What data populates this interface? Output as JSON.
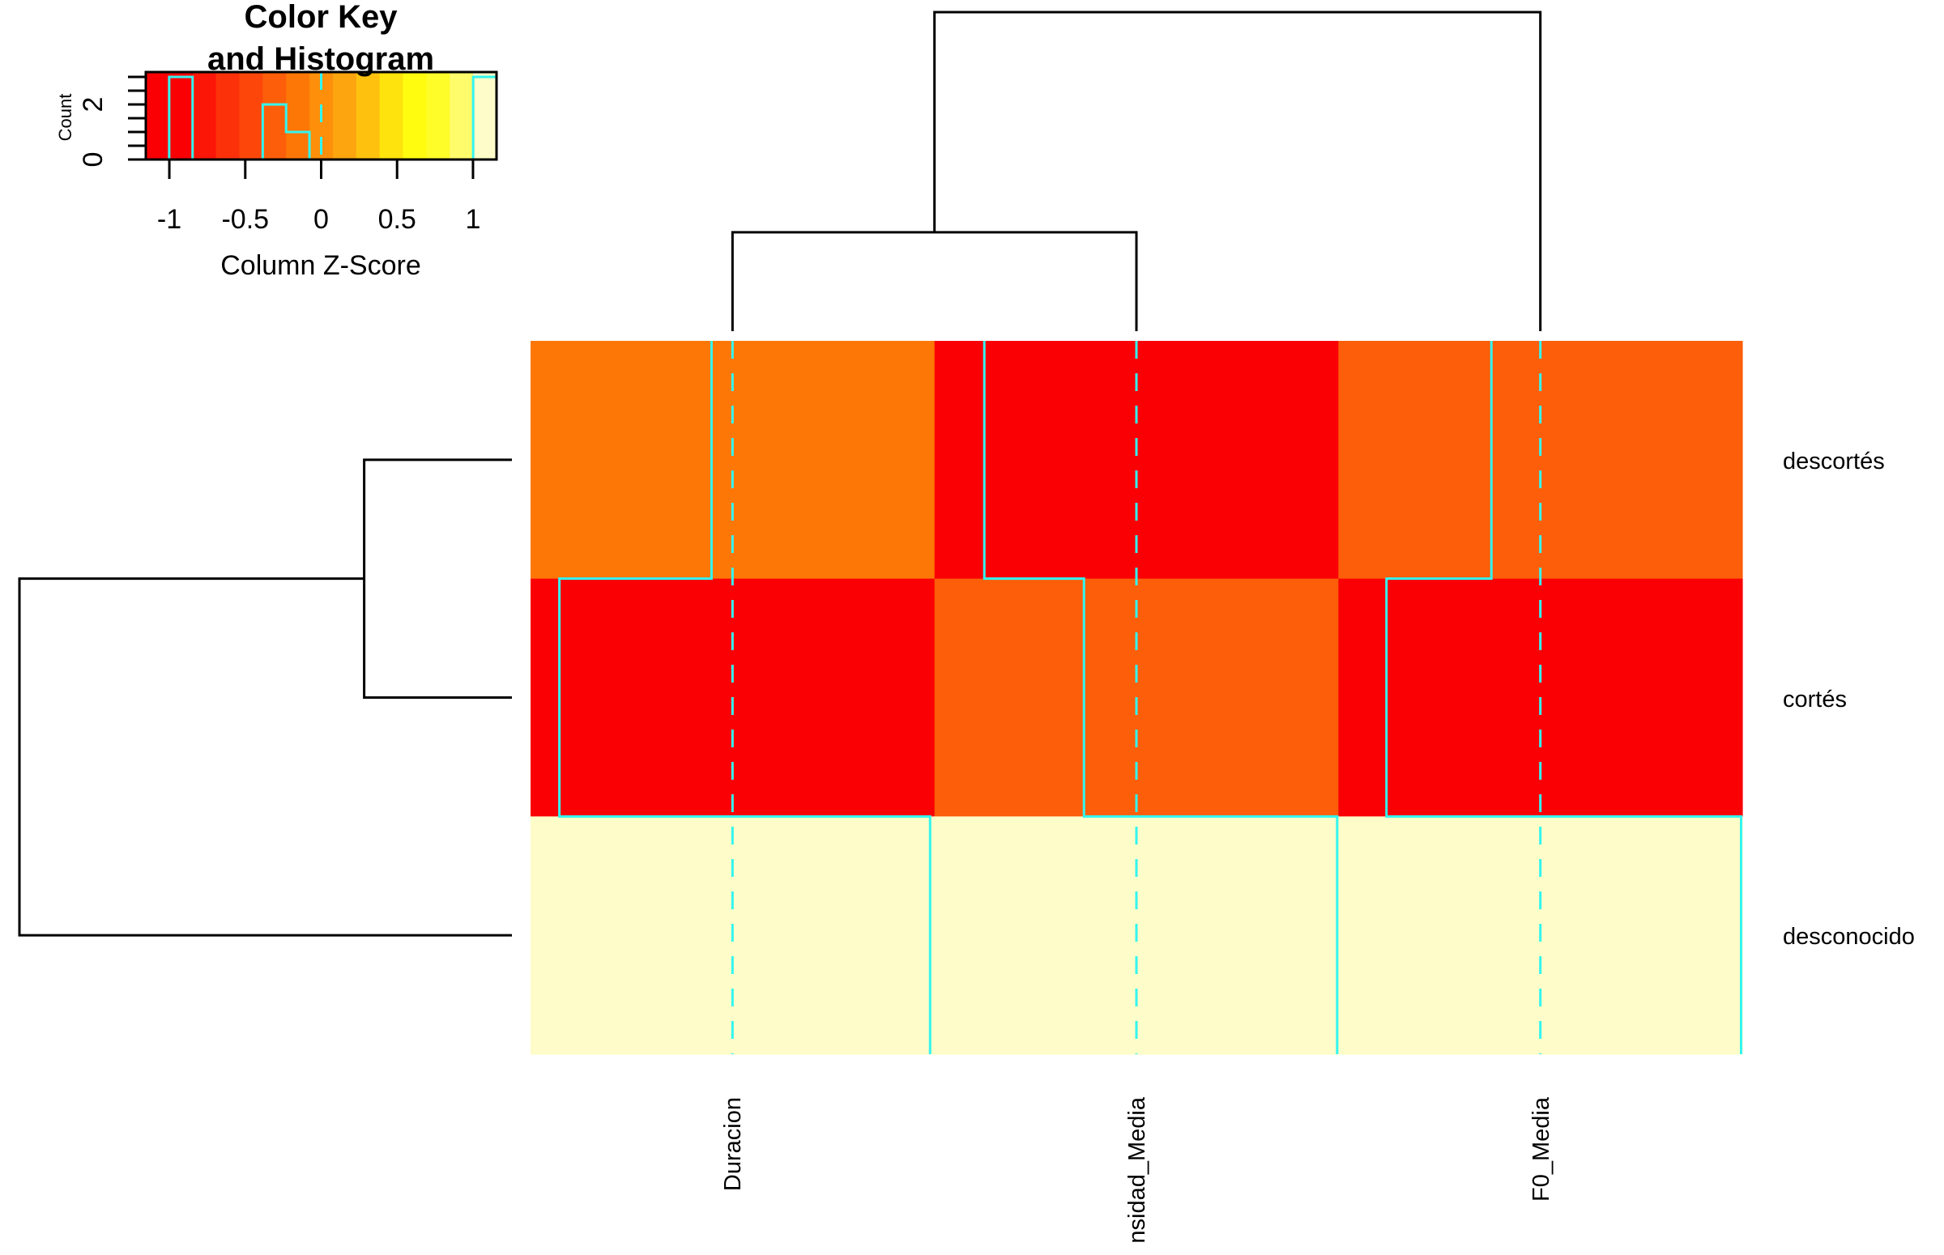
{
  "chart_data": {
    "type": "heatmap",
    "rows": [
      "descortés",
      "cortés",
      "desconocido"
    ],
    "columns": [
      "Duracion",
      "Intensidad_Media",
      "F0_Media"
    ],
    "column_labels_visible": [
      "Duracion",
      "nsidad_Media",
      "F0_Media"
    ],
    "values": [
      [
        -0.12,
        -0.87,
        -0.28
      ],
      [
        -0.99,
        -0.3,
        -0.88
      ],
      [
        1.13,
        1.17,
        1.16
      ]
    ],
    "scale": "column",
    "trace": "column",
    "row_dendrogram": {
      "merges": [
        {
          "left": "descortés",
          "right": "cortés",
          "height": 0.3
        },
        {
          "left": "descortés+cortés",
          "right": "desconocido",
          "height": 1.0
        }
      ]
    },
    "column_dendrogram": {
      "merges": [
        {
          "left": "Duracion",
          "right": "Intensidad_Media",
          "height": 0.31
        },
        {
          "left": "Duracion+Intensidad_Media",
          "right": "F0_Media",
          "height": 1.0
        }
      ]
    },
    "color_key": {
      "title_line1": "Color Key",
      "title_line2": "and Histogram",
      "xlabel": "Column Z-Score",
      "ylabel": "Count",
      "xlim": [
        -1.155,
        1.155
      ],
      "ylim": [
        0,
        3
      ],
      "xticks": [
        -1,
        -0.5,
        0,
        0.5,
        1
      ],
      "xtick_labels": [
        "-1",
        "-0.5",
        "0",
        "0.5",
        "1"
      ],
      "yticks": [
        0,
        0.5,
        1,
        1.5,
        2,
        2.5,
        3
      ],
      "ytick_labels": [
        {
          "value": 0,
          "label": "0"
        },
        {
          "value": 2,
          "label": "2"
        }
      ],
      "histogram": {
        "bins": [
          -1.155,
          -1.001,
          -0.847,
          -0.693,
          -0.539,
          -0.385,
          -0.231,
          -0.077,
          0.077,
          0.231,
          0.385,
          0.539,
          0.693,
          0.847,
          1.001,
          1.155
        ],
        "counts": [
          0,
          3,
          0,
          0,
          0,
          2,
          1,
          0,
          0,
          0,
          0,
          0,
          0,
          0,
          3
        ]
      },
      "palette": [
        "#FA0005",
        "#FA0005",
        "#FB1608",
        "#FC310A",
        "#FD470A",
        "#FC5E0A",
        "#FD7707",
        "#FD8F0A",
        "#FDA50F",
        "#FEC20E",
        "#FEE30C",
        "#FFFC10",
        "#FEFC29",
        "#FEFC6B",
        "#FEFCC8"
      ]
    },
    "colors": {
      "trace": "#33F5F0",
      "dendrogram": "#000000"
    }
  }
}
